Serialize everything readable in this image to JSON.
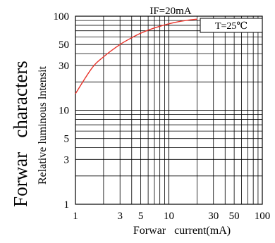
{
  "chart_data": {
    "type": "line",
    "title": "IF=20mA",
    "annotation": "T=25℃",
    "xlabel": "Forwar   current(mA)",
    "ylabel_main": "Forwar   characters",
    "ylabel_sub": "Relative luminous lntensit",
    "xscale": "log",
    "yscale": "log",
    "xlim": [
      1,
      100
    ],
    "ylim": [
      1,
      100
    ],
    "grid": true,
    "x_ticks": [
      1,
      3,
      5,
      10,
      30,
      50,
      100
    ],
    "x_tick_labels": [
      "1",
      "3",
      "5",
      "10",
      "30",
      "50",
      "100"
    ],
    "y_ticks": [
      1,
      3,
      5,
      10,
      30,
      50,
      100
    ],
    "y_tick_labels": [
      "1",
      "3",
      "5",
      "10",
      "30",
      "50",
      "100"
    ],
    "series": [
      {
        "color": "#e8332a",
        "x": [
          1,
          1.5,
          2,
          3,
          4,
          5,
          7,
          10,
          14,
          20
        ],
        "y": [
          15,
          28,
          37,
          50,
          59,
          66,
          75,
          83,
          89,
          93
        ]
      }
    ]
  }
}
